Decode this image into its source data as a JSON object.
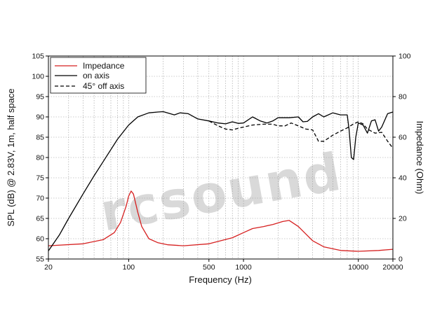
{
  "chart_data": {
    "type": "line",
    "xlabel": "Frequency (Hz)",
    "ylabel": "SPL (dB) @ 2.83V, 1m, half space",
    "y2label": "Impedance (Ohm)",
    "xscale": "log",
    "xlim": [
      20,
      20000
    ],
    "ylim": [
      55,
      105
    ],
    "y2lim": [
      0,
      100
    ],
    "x_ticks": [
      20,
      100,
      500,
      1000,
      10000,
      20000
    ],
    "x_tick_labels": [
      "20",
      "100",
      "500",
      "1000",
      "10000",
      "20000"
    ],
    "y_ticks": [
      55,
      60,
      65,
      70,
      75,
      80,
      85,
      90,
      95,
      100,
      105
    ],
    "y_tick_labels": [
      "55",
      "60",
      "65",
      "70",
      "75",
      "80",
      "85",
      "90",
      "95",
      "100",
      "105"
    ],
    "y2_ticks": [
      0,
      20,
      40,
      60,
      80,
      100
    ],
    "y2_tick_labels": [
      "0",
      "20",
      "40",
      "60",
      "80",
      "100"
    ],
    "grid": true,
    "legend_position": "top-left",
    "watermark": "rcsound",
    "series": [
      {
        "name": "Impedance",
        "axis": "right",
        "color": "#d62020",
        "dash": "solid",
        "x": [
          20,
          40,
          60,
          75,
          85,
          95,
          100,
          105,
          110,
          120,
          130,
          150,
          180,
          220,
          300,
          500,
          800,
          1000,
          1200,
          1500,
          1800,
          2200,
          2500,
          3000,
          4000,
          5000,
          7000,
          10000,
          15000,
          20000
        ],
        "y": [
          6.5,
          7.5,
          9.5,
          13,
          18,
          26,
          31,
          33.5,
          32,
          23,
          16,
          10,
          8,
          7,
          6.5,
          7.5,
          10.5,
          13,
          15,
          16,
          17,
          18.5,
          19,
          16,
          9,
          6,
          4.2,
          3.8,
          4.2,
          4.8
        ]
      },
      {
        "name": "on axis",
        "axis": "left",
        "color": "#000000",
        "dash": "solid",
        "x": [
          20,
          25,
          30,
          40,
          50,
          60,
          80,
          100,
          120,
          150,
          180,
          200,
          250,
          280,
          330,
          400,
          500,
          600,
          700,
          800,
          900,
          1000,
          1200,
          1400,
          1600,
          1800,
          2000,
          2500,
          3000,
          3300,
          3600,
          4000,
          4500,
          5000,
          6000,
          7000,
          8000,
          8300,
          8700,
          9100,
          9500,
          10000,
          11000,
          12000,
          13000,
          14000,
          15000,
          16000,
          18000,
          20000
        ],
        "y": [
          57,
          61,
          65,
          71,
          75.5,
          79,
          84.5,
          88,
          90,
          91,
          91.2,
          91.3,
          90.5,
          91,
          90.8,
          89.5,
          89,
          88.5,
          88.3,
          88.8,
          88.4,
          88.5,
          90,
          89,
          88.5,
          89,
          89.8,
          89.8,
          90,
          88.8,
          88.9,
          90,
          90.8,
          90,
          91,
          90.5,
          90.5,
          87,
          80,
          79.5,
          85,
          88.5,
          88,
          86,
          89,
          89.3,
          86.5,
          87.5,
          90.8,
          91.2
        ]
      },
      {
        "name": "45° off axis",
        "axis": "left",
        "color": "#000000",
        "dash": "dashed",
        "x": [
          500,
          600,
          700,
          800,
          900,
          1000,
          1200,
          1500,
          1800,
          2000,
          2300,
          2600,
          3000,
          3500,
          4000,
          4500,
          5000,
          6000,
          7000,
          8000,
          9000,
          10000,
          11000,
          12000,
          14000,
          16000,
          18000,
          20000
        ],
        "y": [
          89,
          87.8,
          87,
          86.8,
          87.2,
          87.5,
          88,
          88.2,
          88.2,
          87.8,
          87.8,
          88.5,
          87.8,
          87,
          86.8,
          84,
          84,
          85.5,
          86.5,
          87.3,
          88.2,
          88.8,
          88.3,
          87,
          86,
          86.2,
          84,
          82.3
        ]
      }
    ]
  }
}
